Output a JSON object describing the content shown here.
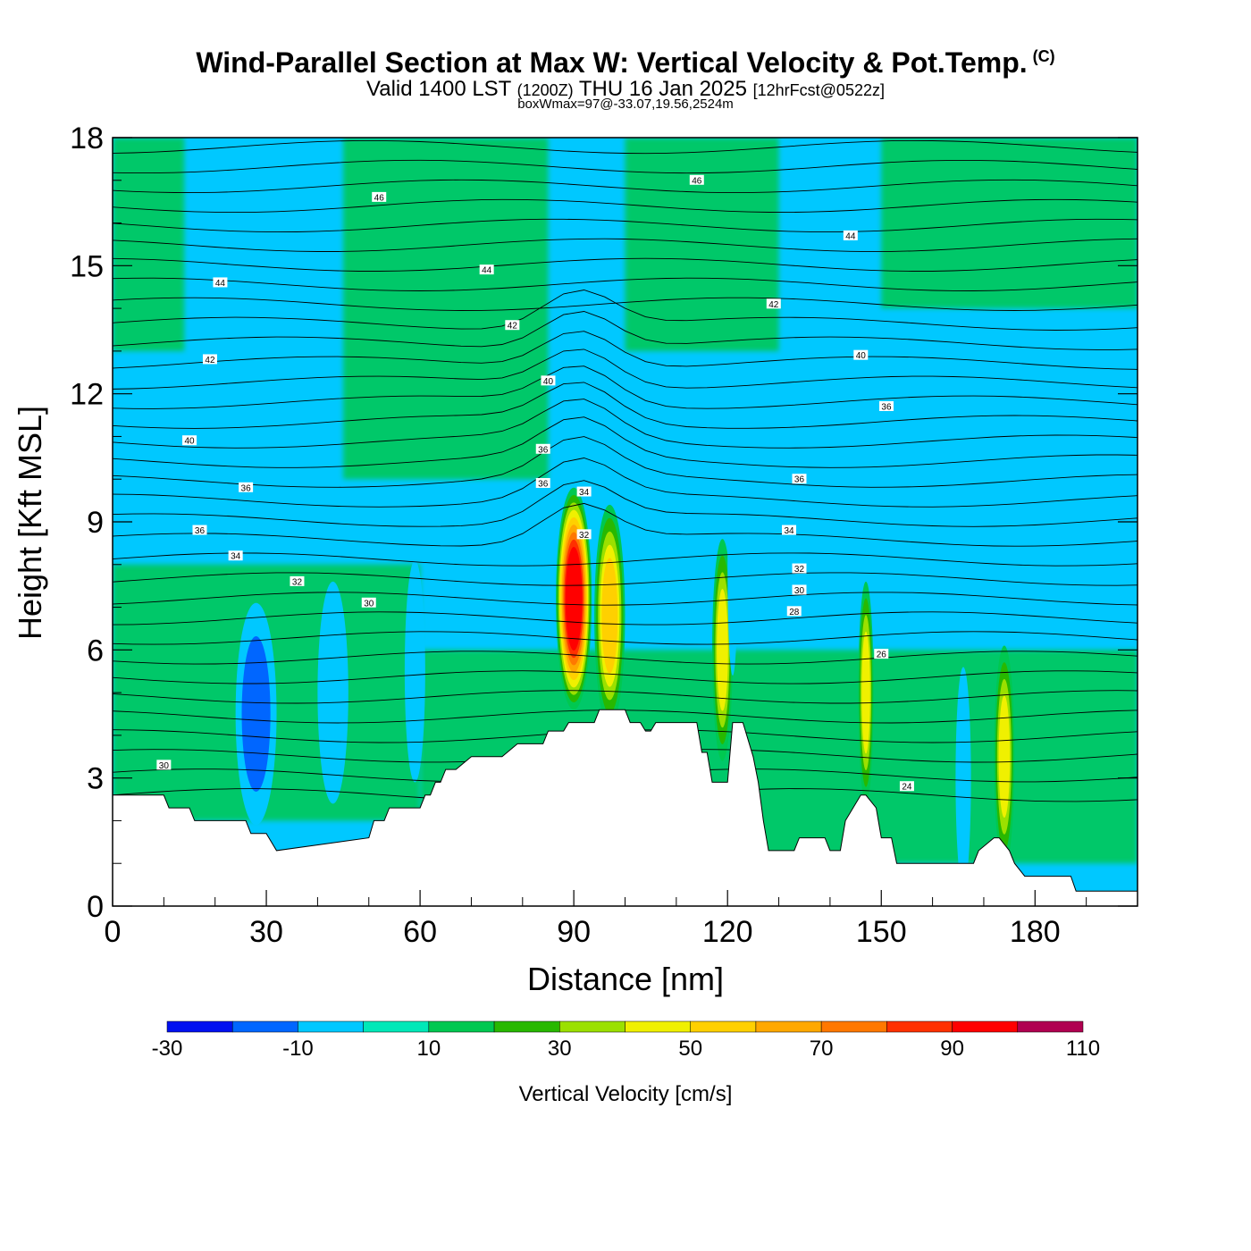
{
  "chart_data": {
    "type": "heatmap",
    "title": "Wind-Parallel Section at Max W: Vertical Velocity & Pot.Temp.",
    "title_mark": "(C)",
    "subtitle_parts": [
      "Valid 1400 LST",
      "(1200Z)",
      "THU 16 Jan 2025",
      "[12hrFcst@0522z]"
    ],
    "subtitle2": "boxWmax=97@-33.07,19.56,2524m",
    "xlabel": "Distance [nm]",
    "ylabel": "Height [Kft MSL]",
    "xlim": [
      0,
      200
    ],
    "ylim": [
      0,
      18
    ],
    "x_ticks": [
      0,
      30,
      60,
      90,
      120,
      150,
      180
    ],
    "x_tick_labels": [
      "0",
      "30",
      "60",
      "90",
      "120",
      "150",
      "180"
    ],
    "y_ticks": [
      0,
      3,
      6,
      9,
      12,
      15,
      18
    ],
    "y_tick_labels": [
      "0",
      "3",
      "6",
      "9",
      "12",
      "15",
      "18"
    ],
    "colorbar": {
      "label": "Vertical Velocity [cm/s]",
      "bounds": [
        -30,
        -20,
        -10,
        0,
        10,
        20,
        30,
        40,
        50,
        60,
        70,
        80,
        90,
        100,
        110
      ],
      "colors": [
        "#0010f0",
        "#0066ff",
        "#00c8ff",
        "#00e8b8",
        "#00c850",
        "#28b800",
        "#9be000",
        "#f0f000",
        "#ffd000",
        "#ffa800",
        "#ff7800",
        "#ff3000",
        "#ff0000",
        "#b00050"
      ],
      "tick_labels": [
        "-30",
        "-10",
        "10",
        "30",
        "50",
        "70",
        "90",
        "110"
      ]
    },
    "velocity_cells": [
      {
        "x": 90,
        "y": 7.2,
        "w": 3.5,
        "v": 97
      },
      {
        "x": 97,
        "y": 6.8,
        "w": 3,
        "v": 58
      },
      {
        "x": 119,
        "y": 6.0,
        "w": 2,
        "v": 40
      },
      {
        "x": 147,
        "y": 5.0,
        "w": 1.5,
        "v": 48
      },
      {
        "x": 174,
        "y": 3.5,
        "w": 2,
        "v": 42
      },
      {
        "x": 28,
        "y": 4.5,
        "w": 4,
        "v": -25
      },
      {
        "x": 43,
        "y": 5.0,
        "w": 3,
        "v": -15
      },
      {
        "x": 59,
        "y": 5.5,
        "w": 2,
        "v": -12
      },
      {
        "x": 166,
        "y": 3.0,
        "w": 1.5,
        "v": -14
      },
      {
        "x": 121,
        "y": 8.0,
        "w": 1,
        "v": -14
      }
    ],
    "theta_isolines": [
      {
        "level": "24",
        "x": 155,
        "y": 2.8
      },
      {
        "level": "26",
        "x": 150,
        "y": 5.9
      },
      {
        "level": "28",
        "x": 133,
        "y": 6.9
      },
      {
        "level": "30",
        "x": 10,
        "y": 3.3
      },
      {
        "level": "30",
        "x": 50,
        "y": 7.1
      },
      {
        "level": "30",
        "x": 134,
        "y": 7.4
      },
      {
        "level": "32",
        "x": 36,
        "y": 7.6
      },
      {
        "level": "32",
        "x": 134,
        "y": 7.9
      },
      {
        "level": "32",
        "x": 92,
        "y": 8.7
      },
      {
        "level": "34",
        "x": 24,
        "y": 8.2
      },
      {
        "level": "34",
        "x": 132,
        "y": 8.8
      },
      {
        "level": "34",
        "x": 92,
        "y": 9.7
      },
      {
        "level": "36",
        "x": 17,
        "y": 8.8
      },
      {
        "level": "36",
        "x": 26,
        "y": 9.8
      },
      {
        "level": "36",
        "x": 84,
        "y": 9.9
      },
      {
        "level": "36",
        "x": 134,
        "y": 10.0
      },
      {
        "level": "36",
        "x": 84,
        "y": 10.7
      },
      {
        "level": "36",
        "x": 151,
        "y": 11.7
      },
      {
        "level": "40",
        "x": 15,
        "y": 10.9
      },
      {
        "level": "40",
        "x": 85,
        "y": 12.3
      },
      {
        "level": "40",
        "x": 146,
        "y": 12.9
      },
      {
        "level": "42",
        "x": 19,
        "y": 12.8
      },
      {
        "level": "42",
        "x": 78,
        "y": 13.6
      },
      {
        "level": "42",
        "x": 129,
        "y": 14.1
      },
      {
        "level": "44",
        "x": 21,
        "y": 14.6
      },
      {
        "level": "44",
        "x": 73,
        "y": 14.9
      },
      {
        "level": "44",
        "x": 144,
        "y": 15.7
      },
      {
        "level": "46",
        "x": 52,
        "y": 16.6
      },
      {
        "level": "46",
        "x": 114,
        "y": 17.0
      }
    ],
    "terrain": {
      "x": [
        0,
        10,
        11,
        15,
        16,
        26,
        27,
        30,
        32,
        50,
        51,
        53,
        54,
        60,
        61,
        62,
        63,
        64,
        65,
        66,
        67,
        70,
        72,
        75,
        76,
        79,
        80,
        84,
        85,
        88,
        89,
        94,
        95,
        100,
        101,
        103,
        104,
        105,
        106,
        114,
        115,
        116,
        117,
        120,
        121,
        122,
        123,
        125,
        126,
        127,
        128,
        133,
        134,
        139,
        140,
        142,
        143,
        146,
        147,
        149,
        150,
        152,
        153,
        162,
        163,
        168,
        169,
        172,
        173,
        175,
        176,
        178,
        179,
        187,
        188,
        200
      ],
      "y": [
        2.6,
        2.6,
        2.3,
        2.3,
        2.0,
        2.0,
        1.7,
        1.7,
        1.3,
        1.6,
        2.0,
        2.0,
        2.3,
        2.3,
        2.6,
        2.6,
        2.9,
        2.9,
        3.2,
        3.2,
        3.2,
        3.5,
        3.5,
        3.5,
        3.5,
        3.8,
        3.8,
        3.8,
        4.1,
        4.1,
        4.3,
        4.3,
        4.6,
        4.6,
        4.3,
        4.3,
        4.1,
        4.1,
        4.3,
        4.3,
        3.6,
        3.6,
        2.9,
        2.9,
        4.3,
        4.3,
        4.3,
        3.5,
        2.9,
        2.0,
        1.3,
        1.3,
        1.6,
        1.6,
        1.3,
        1.3,
        2.0,
        2.6,
        2.6,
        2.3,
        1.6,
        1.6,
        1.0,
        1.0,
        1.0,
        1.0,
        1.3,
        1.6,
        1.6,
        1.3,
        1.0,
        0.7,
        0.7,
        0.7,
        0.35,
        0.35
      ]
    }
  }
}
